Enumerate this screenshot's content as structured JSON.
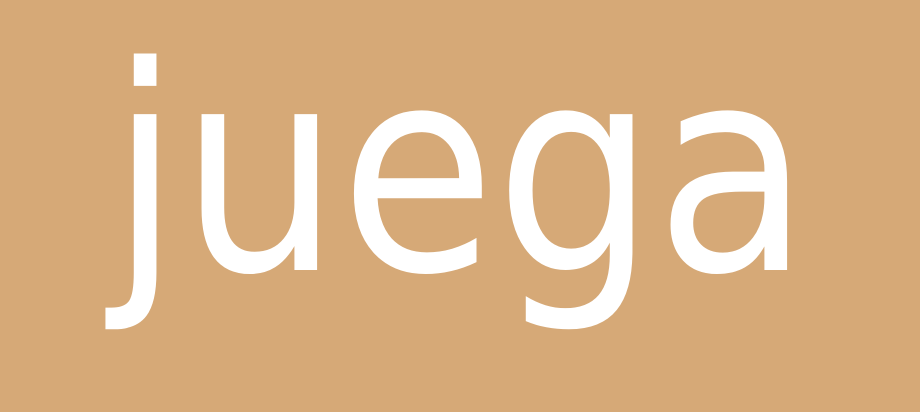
{
  "word": "juega",
  "colors": {
    "background": "#d6a977",
    "text": "#ffffff"
  }
}
